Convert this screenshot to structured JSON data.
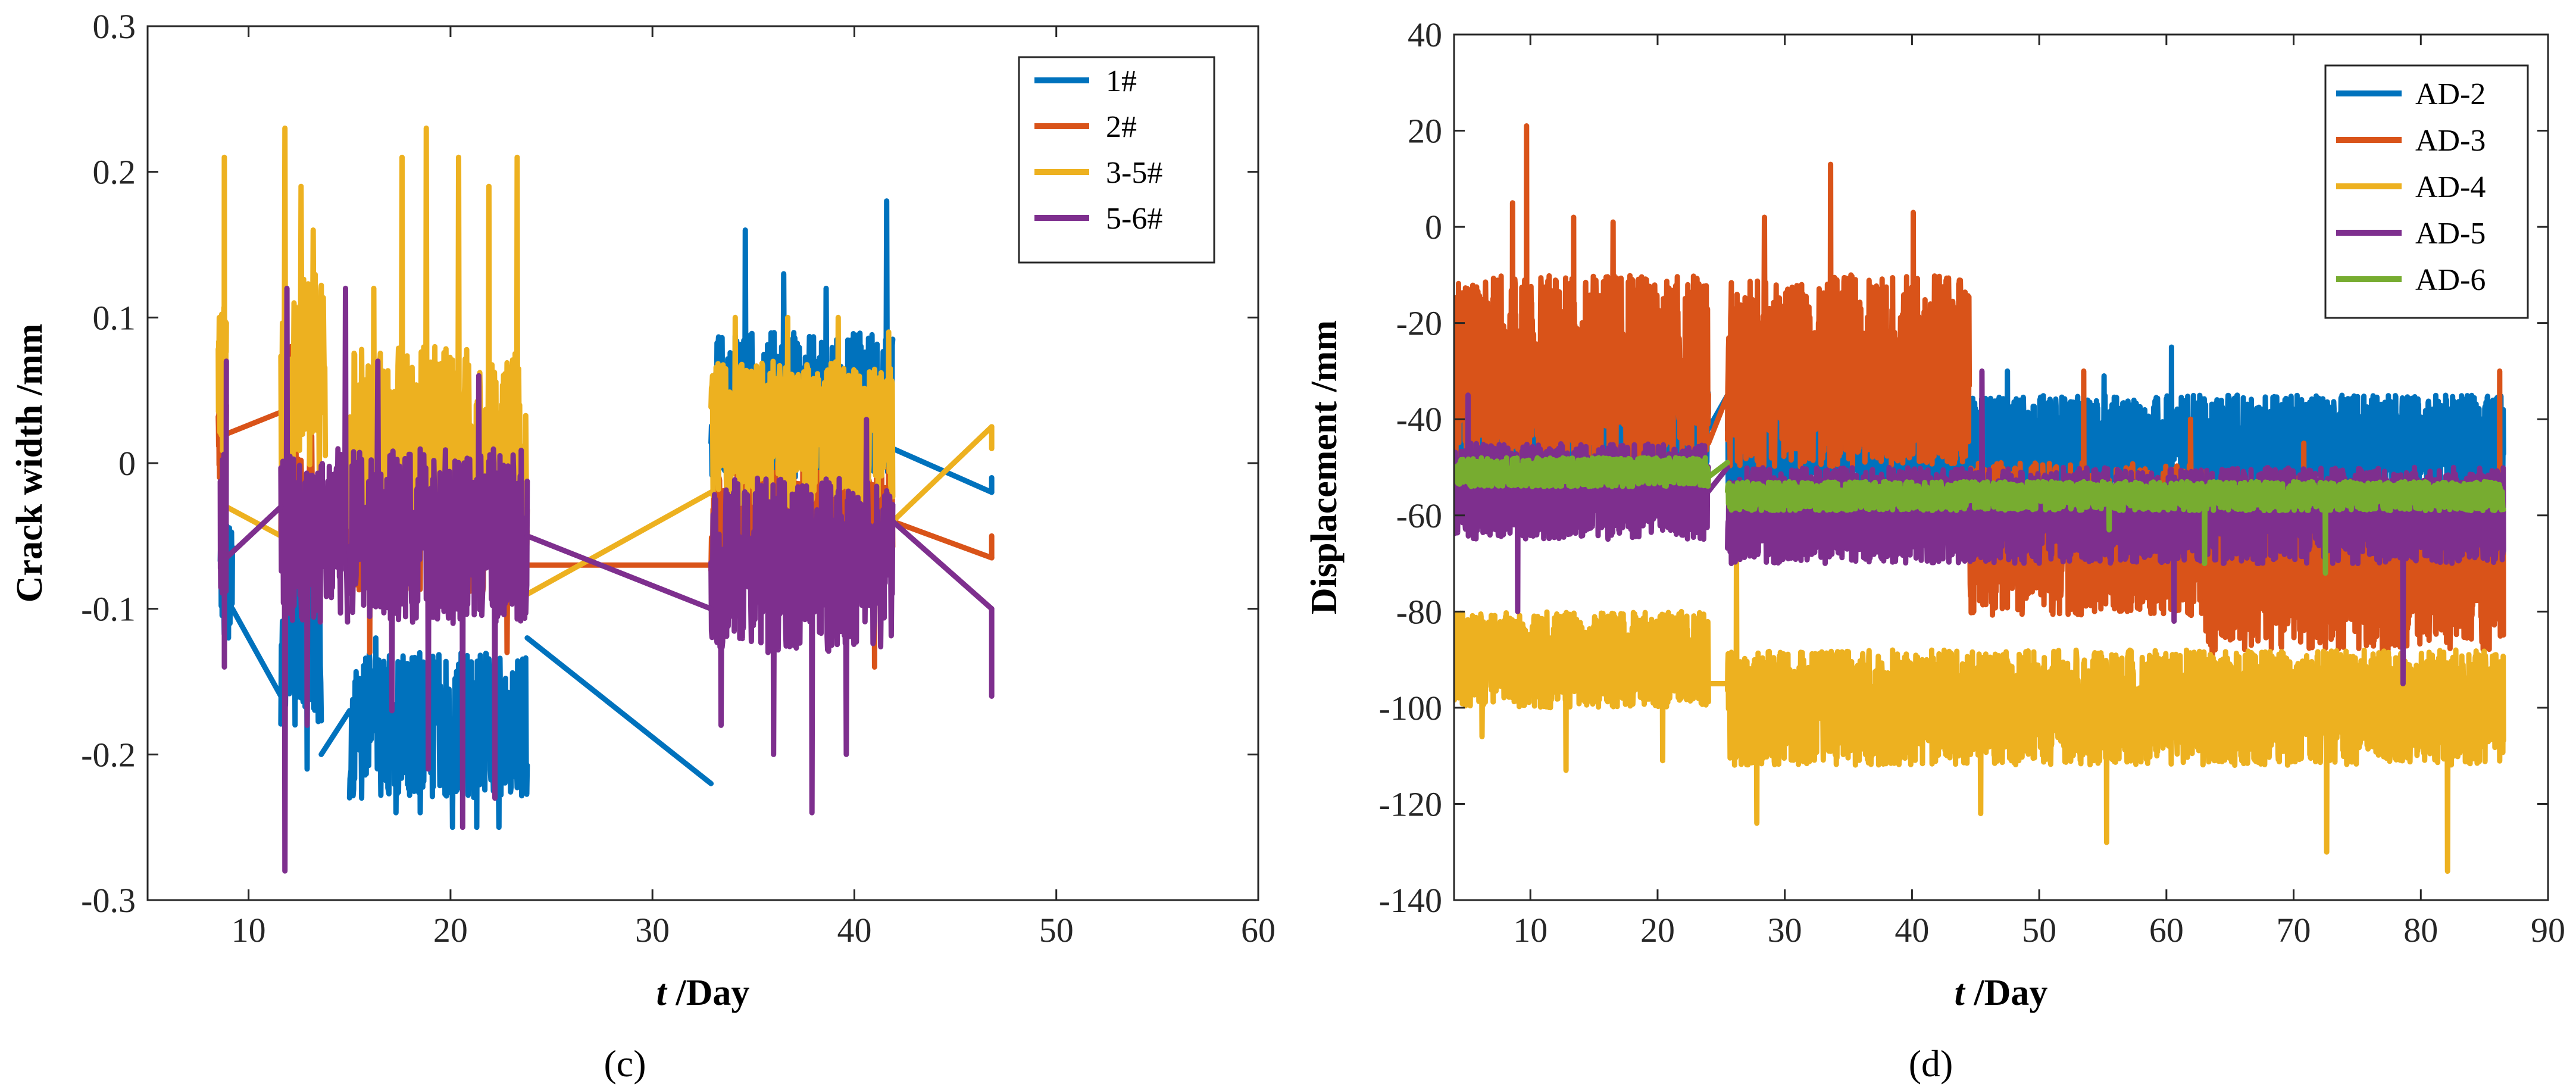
{
  "chart_data": [
    {
      "type": "line",
      "panel_label": "(c)",
      "xlabel_italic": "t",
      "xlabel_rest": " /Day",
      "ylabel": "Crack width /mm",
      "xlim": [
        5,
        60
      ],
      "ylim": [
        -0.3,
        0.3
      ],
      "xticks": [
        10,
        20,
        30,
        40,
        50,
        60
      ],
      "yticks": [
        -0.3,
        -0.2,
        -0.1,
        0,
        0.1,
        0.2,
        0.3
      ],
      "xtick_labels": [
        "10",
        "20",
        "30",
        "40",
        "50",
        "60"
      ],
      "ytick_labels": [
        "-0.3",
        "-0.2",
        "-0.1",
        "0",
        "0.1",
        "0.2",
        "0.3"
      ],
      "legend_position": "top-right",
      "series": [
        {
          "name": "1#",
          "color": "#0072BD",
          "segments": [
            {
              "t0": 8.6,
              "t1": 9.2,
              "base": -0.08,
              "amp": 0.04,
              "spikes": [
                [
                  9.0,
                  -0.12
                ]
              ]
            },
            {
              "t0": 11.6,
              "t1": 13.6,
              "base": -0.12,
              "amp": 0.06,
              "spikes": [
                [
                  11.8,
                  -0.16
                ],
                [
                  12.9,
                  -0.21
                ]
              ]
            },
            {
              "t0": 15.0,
              "t1": 23.8,
              "base": -0.18,
              "amp": 0.05,
              "spikes": [
                [
                  15.6,
                  -0.23
                ],
                [
                  17.3,
                  -0.24
                ],
                [
                  18.5,
                  -0.24
                ],
                [
                  20.1,
                  -0.25
                ],
                [
                  21.3,
                  -0.25
                ],
                [
                  22.4,
                  -0.25
                ],
                [
                  16.3,
                  -0.12
                ]
              ]
            },
            {
              "t0": 32.9,
              "t1": 41.9,
              "base": 0.04,
              "amp": 0.05,
              "spikes": [
                [
                  34.6,
                  0.16
                ],
                [
                  36.5,
                  0.13
                ],
                [
                  38.6,
                  0.12
                ],
                [
                  41.6,
                  0.18
                ],
                [
                  35.2,
                  -0.05
                ]
              ]
            }
          ],
          "links": [
            [
              9.2,
              -0.1,
              11.6,
              -0.16
            ],
            [
              13.6,
              -0.2,
              15.0,
              -0.17
            ],
            [
              23.8,
              -0.12,
              32.9,
              -0.22
            ],
            [
              41.9,
              0.01,
              46.8,
              -0.02
            ],
            [
              46.8,
              -0.02,
              46.8,
              -0.01
            ]
          ]
        },
        {
          "name": "2#",
          "color": "#D95319",
          "segments": [
            {
              "t0": 8.5,
              "t1": 8.9,
              "base": 0.02,
              "amp": 0.03,
              "spikes": [
                [
                  8.6,
                  0.08
                ]
              ]
            },
            {
              "t0": 11.6,
              "t1": 13.2,
              "base": -0.03,
              "amp": 0.05,
              "spikes": [
                [
                  12.1,
                  0.08
                ]
              ]
            },
            {
              "t0": 15.0,
              "t1": 23.8,
              "base": -0.05,
              "amp": 0.04,
              "spikes": [
                [
                  16.0,
                  -0.13
                ],
                [
                  22.8,
                  -0.13
                ]
              ]
            },
            {
              "t0": 32.9,
              "t1": 41.9,
              "base": -0.04,
              "amp": 0.04,
              "spikes": [
                [
                  33.5,
                  -0.12
                ],
                [
                  41.0,
                  -0.14
                ]
              ]
            }
          ],
          "links": [
            [
              8.9,
              0.02,
              11.6,
              0.035
            ],
            [
              23.8,
              -0.07,
              32.9,
              -0.07
            ],
            [
              41.9,
              -0.04,
              46.8,
              -0.065
            ],
            [
              46.8,
              -0.065,
              46.8,
              -0.05
            ]
          ]
        },
        {
          "name": "3-5#",
          "color": "#EDB120",
          "segments": [
            {
              "t0": 8.5,
              "t1": 8.9,
              "base": 0.05,
              "amp": 0.06,
              "spikes": [
                [
                  8.8,
                  0.21
                ]
              ]
            },
            {
              "t0": 11.6,
              "t1": 13.8,
              "base": 0.06,
              "amp": 0.07,
              "spikes": [
                [
                  11.8,
                  0.23
                ],
                [
                  12.6,
                  0.19
                ],
                [
                  13.2,
                  0.16
                ]
              ]
            },
            {
              "t0": 15.0,
              "t1": 23.8,
              "base": 0.01,
              "amp": 0.07,
              "spikes": [
                [
                  16.2,
                  0.12
                ],
                [
                  17.6,
                  0.21
                ],
                [
                  18.8,
                  0.23
                ],
                [
                  20.4,
                  0.21
                ],
                [
                  21.9,
                  0.19
                ],
                [
                  23.3,
                  0.21
                ]
              ]
            },
            {
              "t0": 32.9,
              "t1": 41.9,
              "base": 0.02,
              "amp": 0.05,
              "spikes": [
                [
                  34.1,
                  0.1
                ],
                [
                  36.7,
                  0.1
                ],
                [
                  39.2,
                  0.1
                ],
                [
                  41.7,
                  0.09
                ]
              ]
            }
          ],
          "links": [
            [
              8.9,
              -0.03,
              11.6,
              -0.05
            ],
            [
              23.8,
              -0.09,
              32.9,
              -0.02
            ],
            [
              41.9,
              -0.04,
              46.8,
              0.025
            ],
            [
              46.8,
              0.025,
              46.8,
              0.01
            ]
          ]
        },
        {
          "name": "5-6#",
          "color": "#7E2F8E",
          "segments": [
            {
              "t0": 8.6,
              "t1": 8.9,
              "base": -0.04,
              "amp": 0.05,
              "spikes": [
                [
                  8.8,
                  -0.14
                ],
                [
                  8.9,
                  0.07
                ]
              ]
            },
            {
              "t0": 11.6,
              "t1": 14.9,
              "base": -0.05,
              "amp": 0.06,
              "spikes": [
                [
                  11.8,
                  -0.28
                ],
                [
                  11.9,
                  0.12
                ],
                [
                  12.9,
                  -0.18
                ],
                [
                  14.8,
                  0.12
                ]
              ]
            },
            {
              "t0": 15.0,
              "t1": 23.8,
              "base": -0.05,
              "amp": 0.06,
              "spikes": [
                [
                  17.1,
                  -0.17
                ],
                [
                  18.9,
                  -0.21
                ],
                [
                  20.6,
                  -0.25
                ],
                [
                  22.2,
                  -0.23
                ],
                [
                  16.4,
                  0.07
                ],
                [
                  21.4,
                  0.06
                ]
              ]
            },
            {
              "t0": 32.9,
              "t1": 41.9,
              "base": -0.07,
              "amp": 0.06,
              "spikes": [
                [
                  33.4,
                  -0.18
                ],
                [
                  36.0,
                  -0.2
                ],
                [
                  37.9,
                  -0.24
                ],
                [
                  39.6,
                  -0.2
                ],
                [
                  40.6,
                  0.03
                ]
              ]
            }
          ],
          "links": [
            [
              8.9,
              -0.065,
              11.6,
              -0.03
            ],
            [
              23.8,
              -0.05,
              32.9,
              -0.1
            ],
            [
              41.9,
              -0.04,
              46.8,
              -0.1
            ],
            [
              46.8,
              -0.1,
              46.8,
              -0.16
            ]
          ]
        }
      ]
    },
    {
      "type": "line",
      "panel_label": "(d)",
      "xlabel_italic": "t",
      "xlabel_rest": " /Day",
      "ylabel": "Displacement /mm",
      "xlim": [
        4,
        90
      ],
      "ylim": [
        -140,
        40
      ],
      "xticks": [
        10,
        20,
        30,
        40,
        50,
        60,
        70,
        80,
        90
      ],
      "yticks": [
        -140,
        -120,
        -100,
        -80,
        -60,
        -40,
        -20,
        0,
        20,
        40
      ],
      "xtick_labels": [
        "10",
        "20",
        "30",
        "40",
        "50",
        "60",
        "70",
        "80",
        "90"
      ],
      "ytick_labels": [
        "-140",
        "-120",
        "-100",
        "-80",
        "-60",
        "-40",
        "-20",
        "0",
        "20",
        "40"
      ],
      "legend_position": "top-right",
      "series": [
        {
          "name": "AD-2",
          "color": "#0072BD",
          "segments": [
            {
              "t0": 4,
              "t1": 24,
              "base": -42,
              "amp": 8,
              "spikes": []
            },
            {
              "t0": 25.5,
              "t1": 86.5,
              "base": -45,
              "amp": 10,
              "spikes": [
                [
                  60.4,
                  -25
                ],
                [
                  47.5,
                  -30
                ],
                [
                  55.1,
                  -31
                ]
              ]
            }
          ],
          "links": [
            [
              24,
              -42,
              25.5,
              -35
            ]
          ]
        },
        {
          "name": "AD-3",
          "color": "#D95319",
          "segments": [
            {
              "t0": 4,
              "t1": 24,
              "base": -30,
              "amp": 20,
              "spikes": [
                [
                  9.7,
                  21
                ],
                [
                  8.6,
                  5
                ],
                [
                  13.4,
                  2
                ],
                [
                  16.5,
                  1
                ]
              ]
            },
            {
              "t0": 25.5,
              "t1": 44.5,
              "base": -30,
              "amp": 20,
              "spikes": [
                [
                  33.6,
                  13
                ],
                [
                  28.4,
                  2
                ],
                [
                  40.1,
                  3
                ]
              ]
            },
            {
              "t0": 44.5,
              "t1": 63,
              "base": -65,
              "amp": 16,
              "spikes": [
                [
                  53.5,
                  -30
                ],
                [
                  61.9,
                  -40
                ]
              ]
            },
            {
              "t0": 63,
              "t1": 86.5,
              "base": -70,
              "amp": 18,
              "spikes": [
                [
                  63.6,
                  -100
                ],
                [
                  70.8,
                  -45
                ],
                [
                  86.2,
                  -30
                ]
              ]
            }
          ],
          "links": [
            [
              24,
              -45,
              25.5,
              -35
            ]
          ]
        },
        {
          "name": "AD-4",
          "color": "#EDB120",
          "segments": [
            {
              "t0": 4,
              "t1": 24,
              "base": -90,
              "amp": 10,
              "spikes": [
                [
                  6.2,
                  -106
                ],
                [
                  12.8,
                  -113
                ],
                [
                  20.4,
                  -111
                ]
              ]
            },
            {
              "t0": 25.5,
              "t1": 86.5,
              "base": -100,
              "amp": 12,
              "spikes": [
                [
                  27.8,
                  -124
                ],
                [
                  45.4,
                  -122
                ],
                [
                  55.3,
                  -128
                ],
                [
                  72.6,
                  -130
                ],
                [
                  82.1,
                  -134
                ],
                [
                  26.2,
                  -66
                ]
              ]
            }
          ],
          "links": [
            [
              24,
              -95,
              25.5,
              -95
            ]
          ]
        },
        {
          "name": "AD-5",
          "color": "#7E2F8E",
          "segments": [
            {
              "t0": 4,
              "t1": 24,
              "base": -55,
              "amp": 10,
              "spikes": [
                [
                  5.1,
                  -35
                ],
                [
                  9.0,
                  -80
                ]
              ]
            },
            {
              "t0": 25.5,
              "t1": 86.5,
              "base": -60,
              "amp": 10,
              "spikes": [
                [
                  45.5,
                  -30
                ],
                [
                  60.6,
                  -82
                ],
                [
                  78.6,
                  -95
                ]
              ]
            }
          ],
          "links": [
            [
              24,
              -55,
              25.5,
              -50
            ]
          ]
        },
        {
          "name": "AD-6",
          "color": "#77AC30",
          "segments": [
            {
              "t0": 4,
              "t1": 24,
              "base": -51,
              "amp": 3,
              "spikes": []
            },
            {
              "t0": 25.5,
              "t1": 86.5,
              "base": -56,
              "amp": 3,
              "spikes": [
                [
                  63.0,
                  -70
                ],
                [
                  72.5,
                  -72
                ],
                [
                  55.5,
                  -63
                ]
              ]
            }
          ],
          "links": [
            [
              24,
              -52,
              25.5,
              -49
            ]
          ]
        }
      ]
    }
  ]
}
